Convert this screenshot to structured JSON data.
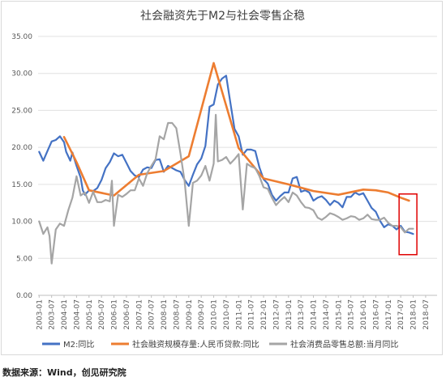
{
  "chart_data": {
    "type": "line",
    "title": "社会融资先于M2与社会零售企稳",
    "xlabel": "",
    "ylabel": "",
    "ylim": [
      0,
      35
    ],
    "yticks": [
      "0.00",
      "5.00",
      "10.00",
      "15.00",
      "20.00",
      "25.00",
      "30.00",
      "35.00"
    ],
    "xticks": [
      "2003-01",
      "2003-07",
      "2004-01",
      "2004-07",
      "2005-01",
      "2005-07",
      "2006-01",
      "2006-07",
      "2007-01",
      "2007-07",
      "2008-01",
      "2008-07",
      "2009-01",
      "2009-07",
      "2010-01",
      "2010-07",
      "2011-01",
      "2011-07",
      "2012-01",
      "2012-07",
      "2013-01",
      "2013-07",
      "2014-01",
      "2014-07",
      "2015-01",
      "2015-07",
      "2016-01",
      "2016-07",
      "2017-01",
      "2017-07",
      "2018-01",
      "2018-07"
    ],
    "grid": true,
    "legend": "bottom",
    "series": [
      {
        "name": "M2:同比",
        "color": "#4472C4",
        "points": [
          [
            0,
            19.4
          ],
          [
            2,
            18.2
          ],
          [
            4,
            19.5
          ],
          [
            6,
            20.8
          ],
          [
            8,
            21
          ],
          [
            10,
            21.5
          ],
          [
            12,
            20.7
          ],
          [
            13,
            19.4
          ],
          [
            15,
            18.2
          ],
          [
            16,
            19.3
          ],
          [
            18,
            17.5
          ],
          [
            20,
            15.9
          ],
          [
            21,
            14.2
          ],
          [
            22,
            13.6
          ],
          [
            24,
            14.2
          ],
          [
            26,
            14.1
          ],
          [
            28,
            14.5
          ],
          [
            30,
            15.6
          ],
          [
            32,
            17.2
          ],
          [
            34,
            18
          ],
          [
            36,
            19.2
          ],
          [
            38,
            18.8
          ],
          [
            40,
            19
          ],
          [
            42,
            17.9
          ],
          [
            44,
            16.8
          ],
          [
            46,
            16.2
          ],
          [
            48,
            16
          ],
          [
            50,
            17
          ],
          [
            52,
            17.3
          ],
          [
            54,
            17.2
          ],
          [
            56,
            18.3
          ],
          [
            58,
            18.4
          ],
          [
            60,
            16.7
          ],
          [
            62,
            17.5
          ],
          [
            64,
            17.2
          ],
          [
            66,
            16.9
          ],
          [
            68,
            16.7
          ],
          [
            70,
            15.6
          ],
          [
            72,
            14.8
          ],
          [
            74,
            16.3
          ],
          [
            76,
            17.7
          ],
          [
            78,
            18.5
          ],
          [
            80,
            20.2
          ],
          [
            82,
            25.5
          ],
          [
            84,
            25.8
          ],
          [
            86,
            28.5
          ],
          [
            88,
            29.3
          ],
          [
            90,
            29.7
          ],
          [
            92,
            26.1
          ],
          [
            94,
            22.5
          ],
          [
            96,
            21.5
          ],
          [
            98,
            19
          ],
          [
            100,
            19.7
          ],
          [
            102,
            19.7
          ],
          [
            104,
            19.5
          ],
          [
            106,
            17.3
          ],
          [
            108,
            15.7
          ],
          [
            110,
            15.1
          ],
          [
            112,
            13.6
          ],
          [
            114,
            12.8
          ],
          [
            116,
            13.4
          ],
          [
            118,
            13.9
          ],
          [
            120,
            13.9
          ],
          [
            122,
            15.8
          ],
          [
            124,
            16
          ],
          [
            126,
            14
          ],
          [
            128,
            14.2
          ],
          [
            130,
            13.9
          ],
          [
            132,
            12.8
          ],
          [
            134,
            13.2
          ],
          [
            136,
            13.4
          ],
          [
            138,
            12.9
          ],
          [
            140,
            12.2
          ],
          [
            142,
            12.8
          ],
          [
            144,
            12.5
          ],
          [
            146,
            11.9
          ],
          [
            148,
            13.3
          ],
          [
            150,
            13.3
          ],
          [
            152,
            13.9
          ],
          [
            154,
            13.6
          ],
          [
            156,
            13.8
          ],
          [
            158,
            12.8
          ],
          [
            160,
            11.8
          ],
          [
            162,
            11.3
          ],
          [
            164,
            10.1
          ],
          [
            166,
            9.2
          ],
          [
            168,
            9.6
          ],
          [
            170,
            9.4
          ],
          [
            172,
            8.9
          ],
          [
            174,
            9.4
          ],
          [
            176,
            8.6
          ],
          [
            178,
            8.5
          ],
          [
            180,
            8.3
          ]
        ]
      },
      {
        "name": "社会融资规模存量:人民币贷款:同比",
        "color": "#ED7D31",
        "points": [
          [
            12,
            21.4
          ],
          [
            18,
            18
          ],
          [
            24,
            14.2
          ],
          [
            36,
            13.5
          ],
          [
            48,
            16.3
          ],
          [
            60,
            16.8
          ],
          [
            72,
            18.8
          ],
          [
            84,
            31.4
          ],
          [
            96,
            19.9
          ],
          [
            108,
            15.8
          ],
          [
            120,
            15
          ],
          [
            132,
            14.1
          ],
          [
            144,
            13.6
          ],
          [
            156,
            14.3
          ],
          [
            162,
            14.2
          ],
          [
            168,
            13.9
          ],
          [
            174,
            13.2
          ],
          [
            178,
            12.8
          ]
        ]
      },
      {
        "name": "社会消费品零售总额:当月同比",
        "color": "#A5A5A5",
        "points": [
          [
            0,
            10
          ],
          [
            2,
            8.3
          ],
          [
            4,
            9.2
          ],
          [
            5,
            8
          ],
          [
            6,
            4.3
          ],
          [
            8,
            8.9
          ],
          [
            10,
            9.7
          ],
          [
            12,
            9.4
          ],
          [
            14,
            11.5
          ],
          [
            16,
            13.2
          ],
          [
            18,
            16.1
          ],
          [
            20,
            13.5
          ],
          [
            22,
            13.9
          ],
          [
            24,
            12.5
          ],
          [
            26,
            14
          ],
          [
            28,
            12.6
          ],
          [
            30,
            12.6
          ],
          [
            32,
            12.9
          ],
          [
            34,
            12.7
          ],
          [
            35,
            15.5
          ],
          [
            36,
            9.4
          ],
          [
            38,
            13.6
          ],
          [
            40,
            13.3
          ],
          [
            42,
            13.7
          ],
          [
            44,
            14.2
          ],
          [
            46,
            14.2
          ],
          [
            48,
            15.8
          ],
          [
            50,
            14.8
          ],
          [
            52,
            16.5
          ],
          [
            54,
            17.5
          ],
          [
            56,
            18.4
          ],
          [
            58,
            21.5
          ],
          [
            60,
            21.1
          ],
          [
            62,
            23.3
          ],
          [
            64,
            23.3
          ],
          [
            66,
            22.6
          ],
          [
            68,
            19.2
          ],
          [
            70,
            15.4
          ],
          [
            72,
            9.4
          ],
          [
            74,
            15.2
          ],
          [
            76,
            15.5
          ],
          [
            78,
            16.2
          ],
          [
            80,
            17.5
          ],
          [
            82,
            15.5
          ],
          [
            84,
            17.8
          ],
          [
            85,
            24.4
          ],
          [
            86,
            18.1
          ],
          [
            88,
            18.3
          ],
          [
            90,
            18.7
          ],
          [
            92,
            17.8
          ],
          [
            94,
            18.4
          ],
          [
            96,
            19.1
          ],
          [
            98,
            11.6
          ],
          [
            100,
            17.8
          ],
          [
            102,
            17.4
          ],
          [
            104,
            17.2
          ],
          [
            106,
            16.1
          ],
          [
            108,
            14.6
          ],
          [
            110,
            14.4
          ],
          [
            112,
            13.2
          ],
          [
            114,
            12.2
          ],
          [
            116,
            12.8
          ],
          [
            118,
            13.3
          ],
          [
            120,
            12.6
          ],
          [
            122,
            13.9
          ],
          [
            124,
            13.5
          ],
          [
            126,
            12.6
          ],
          [
            128,
            11.9
          ],
          [
            130,
            11.8
          ],
          [
            132,
            11.5
          ],
          [
            134,
            10.5
          ],
          [
            136,
            10.2
          ],
          [
            138,
            10.6
          ],
          [
            140,
            11.1
          ],
          [
            142,
            10.9
          ],
          [
            144,
            10.6
          ],
          [
            146,
            10.2
          ],
          [
            148,
            10.4
          ],
          [
            150,
            10.7
          ],
          [
            152,
            10.6
          ],
          [
            154,
            10.2
          ],
          [
            156,
            10.4
          ],
          [
            158,
            10.9
          ],
          [
            160,
            10.3
          ],
          [
            162,
            10.2
          ],
          [
            164,
            10.2
          ],
          [
            166,
            10.5
          ],
          [
            168,
            9.8
          ],
          [
            170,
            9.4
          ],
          [
            172,
            9.4
          ],
          [
            174,
            9.2
          ],
          [
            176,
            8.5
          ],
          [
            178,
            9
          ],
          [
            180,
            9
          ]
        ]
      }
    ],
    "highlight_box": {
      "color": "#e00000",
      "x_range": [
        174,
        181
      ],
      "y_range": [
        5.5,
        13.7
      ]
    }
  },
  "footer": {
    "source": "数据来源：Wind，创见研究院"
  }
}
